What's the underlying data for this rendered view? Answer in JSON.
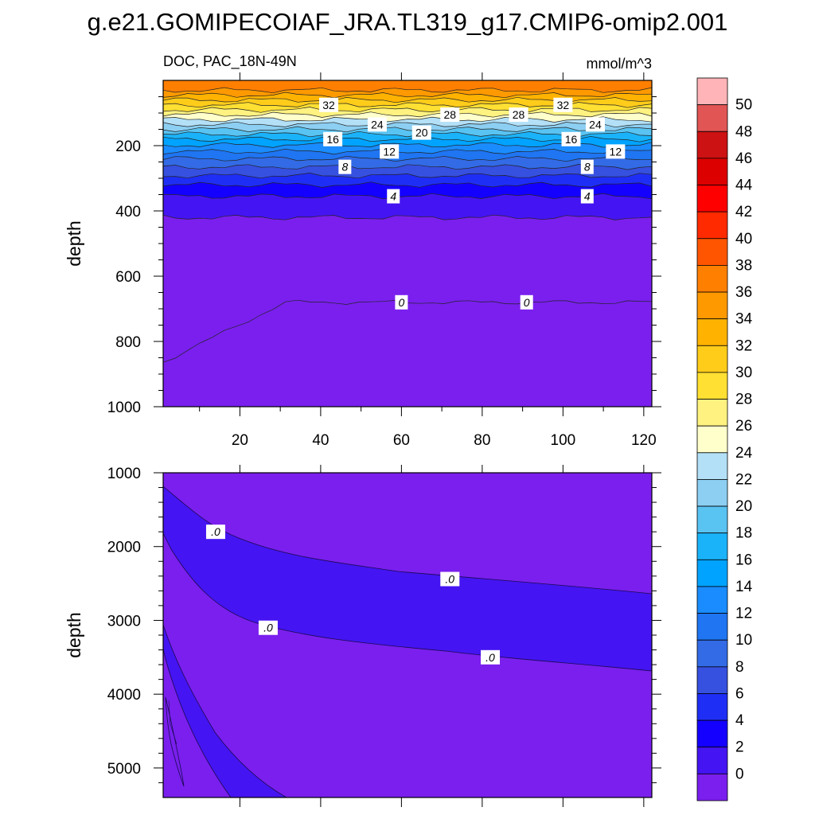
{
  "title": "g.e21.GOMIPECOIAF_JRA.TL319_g17.CMIP6-omip2.001",
  "chart_data": [
    {
      "type": "contour",
      "panel": "upper",
      "left_title": "DOC, PAC_18N-49N",
      "right_title": "mmol/m^3",
      "ylabel": "depth",
      "xlabel": "",
      "x_range": [
        1,
        122
      ],
      "y_range": [
        1000,
        0
      ],
      "x_ticks": [
        20,
        40,
        60,
        80,
        100,
        120
      ],
      "y_ticks": [
        200,
        400,
        600,
        800,
        1000
      ],
      "contour_bands": [
        {
          "depth": [
            0,
            30
          ],
          "value": 37
        },
        {
          "depth": [
            30,
            45
          ],
          "value": 35
        },
        {
          "depth": [
            45,
            60
          ],
          "value": 33
        },
        {
          "depth": [
            60,
            75
          ],
          "value": 31
        },
        {
          "depth": [
            75,
            90
          ],
          "value": 29
        },
        {
          "depth": [
            90,
            105
          ],
          "value": 27
        },
        {
          "depth": [
            105,
            120
          ],
          "value": 25
        },
        {
          "depth": [
            120,
            135
          ],
          "value": 23
        },
        {
          "depth": [
            135,
            150
          ],
          "value": 21
        },
        {
          "depth": [
            150,
            165
          ],
          "value": 19
        },
        {
          "depth": [
            165,
            180
          ],
          "value": 17
        },
        {
          "depth": [
            180,
            198
          ],
          "value": 15
        },
        {
          "depth": [
            198,
            218
          ],
          "value": 13
        },
        {
          "depth": [
            218,
            240
          ],
          "value": 11
        },
        {
          "depth": [
            240,
            265
          ],
          "value": 9
        },
        {
          "depth": [
            265,
            292
          ],
          "value": 7
        },
        {
          "depth": [
            292,
            320
          ],
          "value": 5
        },
        {
          "depth": [
            320,
            355
          ],
          "value": 3
        },
        {
          "depth": [
            355,
            420
          ],
          "value": 1
        },
        {
          "depth": [
            420,
            680
          ],
          "value": -1
        },
        {
          "depth": [
            680,
            1000
          ],
          "value": -3
        }
      ],
      "contour_labels": [
        {
          "text": "32",
          "x": 42,
          "depth": 75
        },
        {
          "text": "32",
          "x": 100,
          "depth": 75
        },
        {
          "text": "28",
          "x": 72,
          "depth": 105
        },
        {
          "text": "28",
          "x": 89,
          "depth": 105
        },
        {
          "text": "24",
          "x": 54,
          "depth": 135
        },
        {
          "text": "24",
          "x": 108,
          "depth": 135
        },
        {
          "text": "20",
          "x": 65,
          "depth": 160
        },
        {
          "text": "16",
          "x": 43,
          "depth": 180
        },
        {
          "text": "16",
          "x": 102,
          "depth": 180
        },
        {
          "text": "12",
          "x": 57,
          "depth": 218
        },
        {
          "text": "12",
          "x": 113,
          "depth": 218
        },
        {
          "text": "8",
          "x": 46,
          "depth": 265
        },
        {
          "text": "8",
          "x": 106,
          "depth": 265
        },
        {
          "text": "4",
          "x": 58,
          "depth": 355
        },
        {
          "text": "4",
          "x": 106,
          "depth": 355
        },
        {
          "text": "0",
          "x": 60,
          "depth": 680
        },
        {
          "text": "0",
          "x": 91,
          "depth": 680
        }
      ]
    },
    {
      "type": "contour",
      "panel": "lower",
      "ylabel": "depth",
      "xlabel": "",
      "x_range": [
        1,
        122
      ],
      "y_range": [
        1000,
        5400
      ],
      "y_ticks": [
        1000,
        2000,
        3000,
        4000,
        5000
      ],
      "contour_labels": [
        {
          "text": ".0",
          "x": 14,
          "depth": 1800
        },
        {
          "text": ".0",
          "x": 72,
          "depth": 2440
        },
        {
          "text": ".0",
          "x": 27,
          "depth": 3100
        },
        {
          "text": ".0",
          "x": 82,
          "depth": 3500
        }
      ]
    }
  ],
  "colorbar": {
    "labels": [
      "50",
      "48",
      "46",
      "44",
      "42",
      "40",
      "38",
      "36",
      "34",
      "32",
      "30",
      "28",
      "26",
      "24",
      "22",
      "20",
      "18",
      "16",
      "14",
      "12",
      "10",
      "8",
      "6",
      "4",
      "2",
      "0"
    ],
    "colors": [
      "#FFB4B8",
      "#E25555",
      "#CC1212",
      "#DD0000",
      "#FF0000",
      "#FF2A00",
      "#FF5500",
      "#FF7F00",
      "#FF9900",
      "#FFB300",
      "#FFCC1A",
      "#FFE033",
      "#FFF280",
      "#FFFFCC",
      "#B3E0F7",
      "#8CCFF2",
      "#59C3F2",
      "#1AB3FA",
      "#00A3FF",
      "#1A8CFF",
      "#1F75F2",
      "#336BE6",
      "#3650E0",
      "#1F2EF5",
      "#1400FF",
      "#4514F2",
      "#7A1FEE"
    ]
  }
}
